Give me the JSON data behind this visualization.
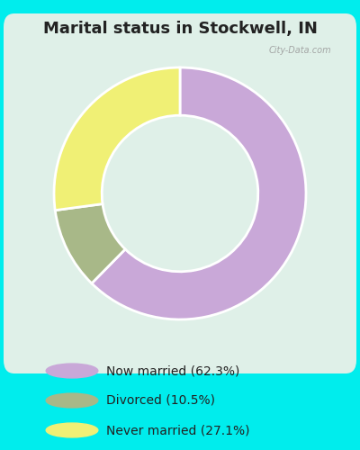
{
  "title": "Marital status in Stockwell, IN",
  "title_fontsize": 13,
  "title_color": "#222222",
  "background_color": "#00EDED",
  "chart_bg_color_top": "#e8f5ee",
  "chart_bg_color": "#dff0e8",
  "slices": [
    62.3,
    10.5,
    27.1
  ],
  "labels": [
    "Now married (62.3%)",
    "Divorced (10.5%)",
    "Never married (27.1%)"
  ],
  "colors": [
    "#c9a8d8",
    "#a8b888",
    "#f0f075"
  ],
  "donut_width": 0.38,
  "start_angle": 90,
  "watermark": "City-Data.com"
}
